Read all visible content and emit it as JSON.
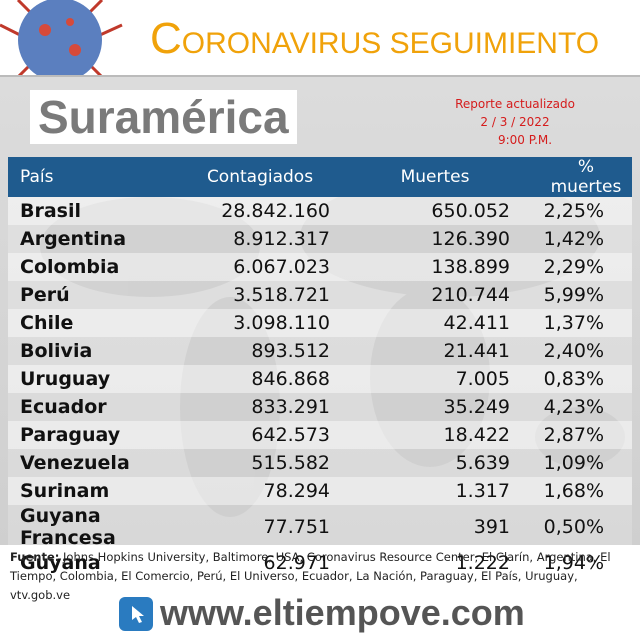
{
  "header": {
    "title": "CORONAVIRUS",
    "subtitle": "SEGUIMIENTO"
  },
  "region": "Suramérica",
  "report": {
    "label": "Reporte actualizado",
    "date": "2 / 3 / 2022",
    "time": "9:00 P.M."
  },
  "table": {
    "columns": [
      "País",
      "Contagiados",
      "Muertes",
      "% muertes"
    ],
    "rows": [
      [
        "Brasil",
        "28.842.160",
        "650.052",
        "2,25%"
      ],
      [
        "Argentina",
        "8.912.317",
        "126.390",
        "1,42%"
      ],
      [
        "Colombia",
        "6.067.023",
        "138.899",
        "2,29%"
      ],
      [
        "Perú",
        "3.518.721",
        "210.744",
        "5,99%"
      ],
      [
        "Chile",
        "3.098.110",
        "42.411",
        "1,37%"
      ],
      [
        "Bolivia",
        "893.512",
        "21.441",
        "2,40%"
      ],
      [
        "Uruguay",
        "846.868",
        "7.005",
        "0,83%"
      ],
      [
        "Ecuador",
        "833.291",
        "35.249",
        "4,23%"
      ],
      [
        "Paraguay",
        "642.573",
        "18.422",
        "2,87%"
      ],
      [
        "Venezuela",
        "515.582",
        "5.639",
        "1,09%"
      ],
      [
        "Surinam",
        "78.294",
        "1.317",
        "1,68%"
      ],
      [
        "Guyana Francesa",
        "77.751",
        "391",
        "0,50%"
      ],
      [
        "Guyana",
        "62.971",
        "1.222",
        "1,94%"
      ]
    ]
  },
  "footer": {
    "source_label": "Fuente:",
    "source": "Johns Hopkins University, Baltimore, USA, Coronavirus Resource Center,  El Clarín, Argentina, El Tiempo, Colombia, El Comercio, Perú, El Universo, Ecuador, La Nación, Paraguay, El País, Uruguay, vtv.gob.ve",
    "website": "www.eltiempove.com"
  }
}
